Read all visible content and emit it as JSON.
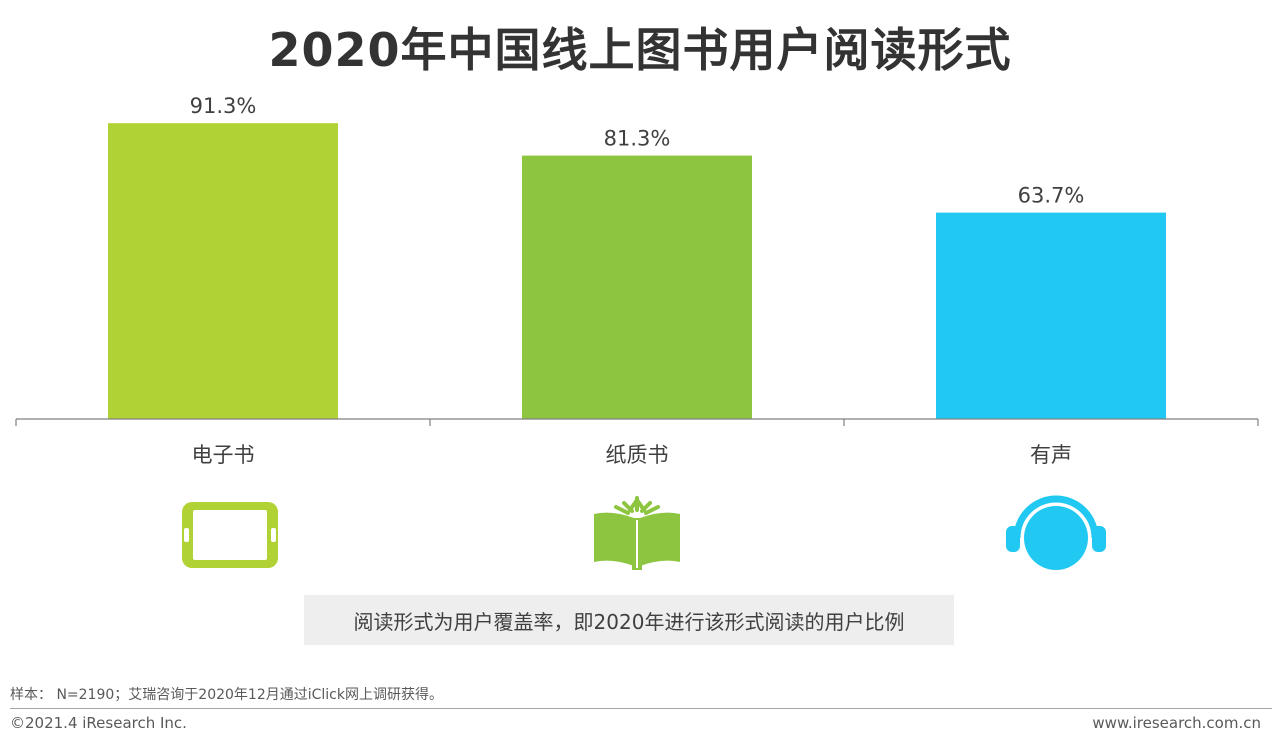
{
  "title": "2020年中国线上图书用户阅读形式",
  "chart_data": {
    "type": "bar",
    "categories": [
      "电子书",
      "纸质书",
      "有声"
    ],
    "values": [
      91.3,
      81.3,
      63.7
    ],
    "value_labels": [
      "91.3%",
      "81.3%",
      "63.7%"
    ],
    "colors": [
      "#b1d234",
      "#8dc541",
      "#21c9f2"
    ],
    "ylim": [
      0,
      100
    ],
    "grid": false,
    "legend": "none"
  },
  "icons": [
    "tablet-icon",
    "open-book-icon",
    "headphones-icon"
  ],
  "note": "阅读形式为用户覆盖率，即2020年进行该形式阅读的用户比例",
  "footer": {
    "sample": "样本： N=2190；艾瑞咨询于2020年12月通过iClick网上调研获得。",
    "copyright": "©2021.4 iResearch Inc.",
    "website": "www.iresearch.com.cn"
  }
}
